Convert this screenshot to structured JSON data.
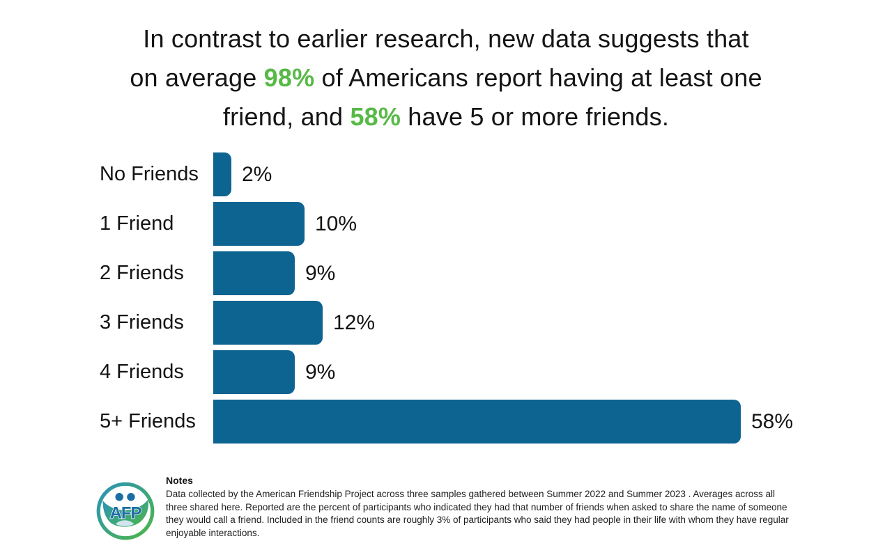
{
  "title": {
    "lines": [
      [
        {
          "text": "In contrast to earlier research, new data suggests that",
          "highlight": false
        }
      ],
      [
        {
          "text": "on average ",
          "highlight": false
        },
        {
          "text": "98%",
          "highlight": true
        },
        {
          "text": " of Americans report having at least one",
          "highlight": false
        }
      ],
      [
        {
          "text": "friend, and ",
          "highlight": false
        },
        {
          "text": "58%",
          "highlight": true
        },
        {
          "text": " have 5 or more friends.",
          "highlight": false
        }
      ]
    ],
    "highlight_color": "#58b947",
    "text_color": "#141414"
  },
  "chart_data": {
    "type": "bar",
    "orientation": "horizontal",
    "categories": [
      "No Friends",
      "1 Friend",
      "2 Friends",
      "3 Friends",
      "4 Friends",
      "5+ Friends"
    ],
    "values": [
      2,
      10,
      9,
      12,
      9,
      58
    ],
    "value_labels": [
      "2%",
      "10%",
      "9%",
      "12%",
      "9%",
      "58%"
    ],
    "bar_color": "#0e6491",
    "xlim": [
      0,
      60
    ],
    "grid": false,
    "value_label_position": "right-of-bar",
    "title": "",
    "xlabel": "",
    "ylabel": ""
  },
  "logo": {
    "text": "AFP",
    "ring_color_start": "#2a93b8",
    "ring_color_end": "#4db648",
    "figure_color": "#1b6da4"
  },
  "notes": {
    "heading": "Notes",
    "body": "Data collected by the American Friendship Project across three samples gathered between Summer 2022 and Summer 2023 . Averages across all three shared here. Reported are the percent of participants who indicated they had that number of friends when asked to share the name of someone they would call a friend. Included in the friend counts are roughly 3% of participants who said they had people in their life with whom they have regular enjoyable interactions."
  }
}
